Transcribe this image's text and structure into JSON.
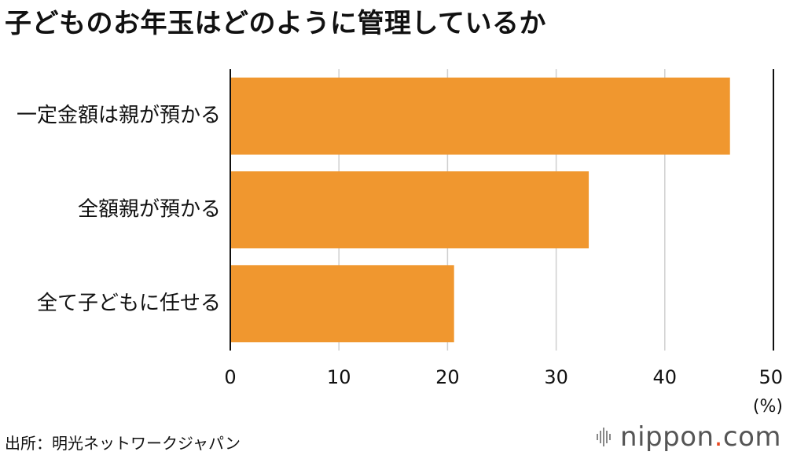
{
  "title": "子どものお年玉はどのように管理しているか",
  "source": "出所：明光ネットワークジャパン",
  "logo": {
    "name": "nippon",
    "dot": ".",
    "tld": "com"
  },
  "colors": {
    "bar": "#F0972F",
    "grid": "#cfcfcf",
    "axis": "#111111",
    "logo_accent": "#e8471f"
  },
  "chart_data": {
    "type": "bar",
    "orientation": "horizontal",
    "categories": [
      "一定金額は親が預かる",
      "全額親が預かる",
      "全て子どもに任せる"
    ],
    "values": [
      46,
      33,
      20.6
    ],
    "xlim": [
      0,
      50
    ],
    "xticks": [
      0,
      10,
      20,
      30,
      40,
      50
    ],
    "unit": "(%)",
    "grid": true
  }
}
